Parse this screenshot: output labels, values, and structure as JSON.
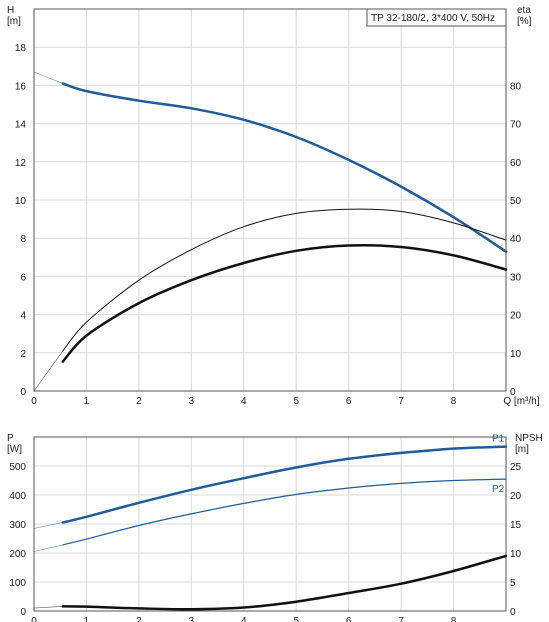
{
  "chart_data": [
    {
      "type": "line",
      "title": "TP 32-180/2, 3*400 V, 50Hz",
      "xlabel": "Q [m³/h]",
      "xlim": [
        0,
        9
      ],
      "x_ticks": [
        0,
        1,
        2,
        3,
        4,
        5,
        6,
        7,
        8
      ],
      "ylabel_left": [
        "H",
        "[m]"
      ],
      "ylim_left": [
        0,
        20
      ],
      "y_ticks_left": [
        0,
        2,
        4,
        6,
        8,
        10,
        12,
        14,
        16,
        18
      ],
      "ylabel_right": [
        "eta",
        "[%]"
      ],
      "ylim_right": [
        0,
        100
      ],
      "y_ticks_right": [
        0,
        10,
        20,
        30,
        40,
        50,
        60,
        70,
        80
      ],
      "grid": true,
      "series": [
        {
          "role": "head",
          "axis": "left",
          "color": "#1f5c99",
          "stroke_width": 2.5,
          "x": [
            0.55,
            1,
            2,
            3,
            4,
            5,
            6,
            7,
            8,
            9
          ],
          "values": [
            16.1,
            15.7,
            15.2,
            14.8,
            14.2,
            13.3,
            12.1,
            10.7,
            9.1,
            7.3
          ],
          "extension": {
            "x": [
              0,
              0.55
            ],
            "values": [
              16.7,
              16.1
            ]
          }
        },
        {
          "role": "efficiency-thin",
          "axis": "right",
          "color": "#111111",
          "stroke_width": 1,
          "x": [
            0.55,
            1,
            2,
            3,
            4,
            5,
            6,
            7,
            8,
            9
          ],
          "values": [
            10.5,
            18,
            29,
            37,
            43,
            46.5,
            47.6,
            47,
            44,
            39.5
          ],
          "extension": {
            "x": [
              0,
              0.55
            ],
            "values": [
              0,
              10.5
            ]
          }
        },
        {
          "role": "efficiency-thick",
          "axis": "right",
          "color": "#111111",
          "stroke_width": 2.5,
          "x": [
            0.55,
            1,
            2,
            3,
            4,
            5,
            6,
            7,
            8,
            9
          ],
          "values": [
            7.7,
            14.5,
            23,
            29,
            33.5,
            36.7,
            38.1,
            37.7,
            35.5,
            31.8
          ]
        }
      ]
    },
    {
      "type": "line",
      "xlim": [
        0,
        9
      ],
      "x_ticks": [
        0,
        1,
        2,
        3,
        4,
        5,
        6,
        7,
        8
      ],
      "ylabel_left": [
        "P",
        "[W]"
      ],
      "ylim_left": [
        0,
        600
      ],
      "y_ticks_left": [
        0,
        100,
        200,
        300,
        400,
        500
      ],
      "ylabel_right": [
        "NPSH",
        "[m]"
      ],
      "ylim_right": [
        0,
        30
      ],
      "y_ticks_right": [
        0,
        5,
        10,
        15,
        20,
        25
      ],
      "grid": true,
      "series": [
        {
          "name": "P1",
          "axis": "left",
          "color": "#1f5c99",
          "stroke_width": 2.5,
          "x": [
            0.55,
            1,
            2,
            3,
            4,
            5,
            6,
            7,
            8,
            9
          ],
          "values": [
            305,
            325,
            373,
            418,
            458,
            495,
            525,
            545,
            560,
            567
          ],
          "extension": {
            "x": [
              0,
              0.55
            ],
            "values": [
              285,
              305
            ]
          }
        },
        {
          "name": "P2",
          "axis": "left",
          "color": "#1f5c99",
          "stroke_width": 1.2,
          "x": [
            0.55,
            1,
            2,
            3,
            4,
            5,
            6,
            7,
            8,
            9
          ],
          "values": [
            228,
            248,
            295,
            335,
            371,
            402,
            424,
            440,
            450,
            455
          ],
          "extension": {
            "x": [
              0,
              0.55
            ],
            "values": [
              205,
              228
            ]
          }
        },
        {
          "role": "npsh",
          "axis": "right",
          "color": "#111111",
          "stroke_width": 2.5,
          "x": [
            0.55,
            1,
            2,
            3,
            4,
            5,
            6,
            7,
            8,
            9
          ],
          "values": [
            0.8,
            0.75,
            0.45,
            0.3,
            0.6,
            1.6,
            3.1,
            4.7,
            6.9,
            9.5
          ],
          "extension": {
            "x": [
              0,
              0.55
            ],
            "values": [
              0.5,
              0.8
            ]
          }
        }
      ]
    }
  ]
}
